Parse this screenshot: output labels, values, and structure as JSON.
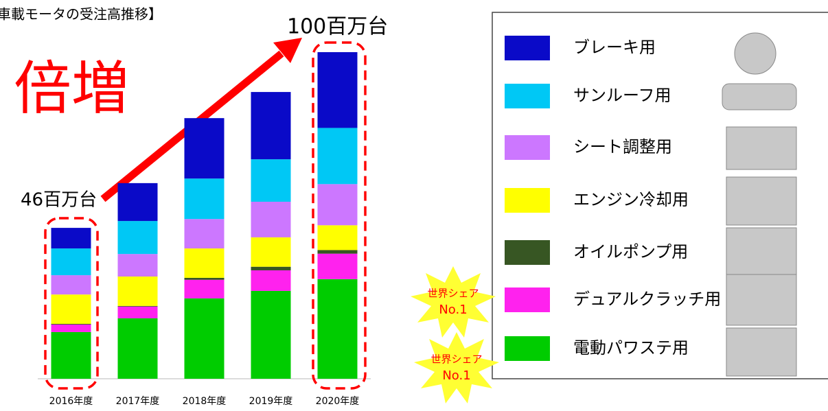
{
  "chart_data": {
    "type": "bar",
    "stacked": true,
    "title": "車載モータの受注高推移】",
    "headline": "倍増",
    "start_label": "46百万台",
    "end_label": "100百万台",
    "categories": [
      "2016年度",
      "2017年度",
      "2018年度",
      "2019年度",
      "2020年度"
    ],
    "series": [
      {
        "name": "ブレーキ用",
        "color": "#0a0ac8",
        "values": [
          6.3,
          11.6,
          18.5,
          20.6,
          23.2
        ]
      },
      {
        "name": "サンルーフ用",
        "color": "#00c8f5",
        "values": [
          8.2,
          10.1,
          12.4,
          13.0,
          17.2
        ]
      },
      {
        "name": "シート調整用",
        "color": "#cc77ff",
        "values": [
          5.9,
          6.9,
          9.0,
          10.9,
          12.6
        ]
      },
      {
        "name": "エンジン冷却用",
        "color": "#ffff00",
        "values": [
          9.0,
          9.0,
          9.0,
          9.0,
          7.6
        ]
      },
      {
        "name": "オイルポンプ用",
        "color": "#375623",
        "values": [
          0.2,
          0.2,
          0.6,
          1.1,
          1.1
        ]
      },
      {
        "name": "デュアルクラッチ用",
        "color": "#ff22ee",
        "values": [
          2.3,
          3.6,
          5.7,
          6.3,
          7.8
        ]
      },
      {
        "name": "電動パワステ用",
        "color": "#00cc00",
        "values": [
          14.3,
          18.5,
          24.6,
          26.9,
          30.5
        ]
      }
    ],
    "badges": [
      {
        "line1": "世界シェア",
        "line2": "No.1"
      },
      {
        "line1": "世界シェア",
        "line2": "No.1"
      }
    ]
  }
}
